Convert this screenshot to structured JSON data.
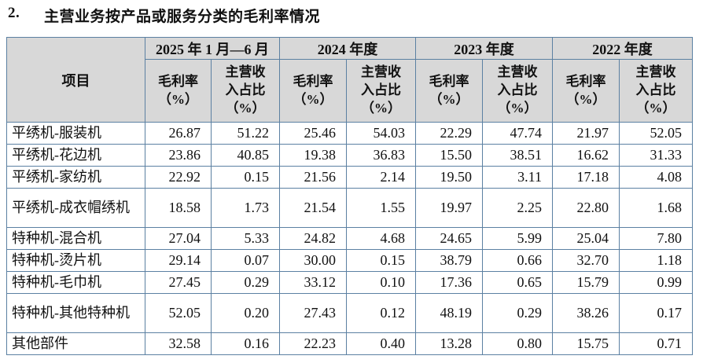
{
  "page": {
    "title_number": "2.",
    "title_text": "主营业务按产品或服务分类的毛利率情况"
  },
  "table": {
    "corner_header": "项目",
    "period_groups": [
      "2025 年 1 月—6 月",
      "2024 年度",
      "2023 年度",
      "2022 年度"
    ],
    "sub_header_margin": "毛利率\n（%）",
    "sub_header_share": "主营收\n入占比\n（%）",
    "rows": [
      {
        "label": "平绣机-服装机",
        "values": [
          "26.87",
          "51.22",
          "25.46",
          "54.03",
          "22.29",
          "47.74",
          "21.97",
          "52.05"
        ]
      },
      {
        "label": "平绣机-花边机",
        "values": [
          "23.86",
          "40.85",
          "19.38",
          "36.83",
          "15.50",
          "38.51",
          "16.62",
          "31.33"
        ]
      },
      {
        "label": "平绣机-家纺机",
        "values": [
          "22.92",
          "0.15",
          "21.56",
          "2.14",
          "19.50",
          "3.11",
          "17.18",
          "4.08"
        ]
      },
      {
        "label": "平绣机-成衣帽绣机",
        "values": [
          "18.58",
          "1.73",
          "21.54",
          "1.55",
          "19.97",
          "2.25",
          "22.80",
          "1.68"
        ]
      },
      {
        "label": "特种机-混合机",
        "values": [
          "27.04",
          "5.33",
          "24.82",
          "4.68",
          "24.65",
          "5.99",
          "25.04",
          "7.80"
        ]
      },
      {
        "label": "特种机-烫片机",
        "values": [
          "29.14",
          "0.07",
          "30.00",
          "0.15",
          "38.79",
          "0.66",
          "32.70",
          "1.18"
        ]
      },
      {
        "label": "特种机-毛巾机",
        "values": [
          "27.45",
          "0.29",
          "33.12",
          "0.10",
          "17.36",
          "0.65",
          "15.79",
          "0.99"
        ]
      },
      {
        "label": "特种机-其他特种机",
        "values": [
          "52.05",
          "0.20",
          "27.43",
          "0.12",
          "48.19",
          "0.29",
          "38.26",
          "0.17"
        ]
      },
      {
        "label": "其他部件",
        "values": [
          "32.58",
          "0.16",
          "22.23",
          "0.40",
          "13.28",
          "0.80",
          "15.75",
          "0.71"
        ]
      }
    ],
    "colors": {
      "border": "#5b80a2",
      "header_background": "#d8d8d8",
      "text": "#111111"
    }
  }
}
